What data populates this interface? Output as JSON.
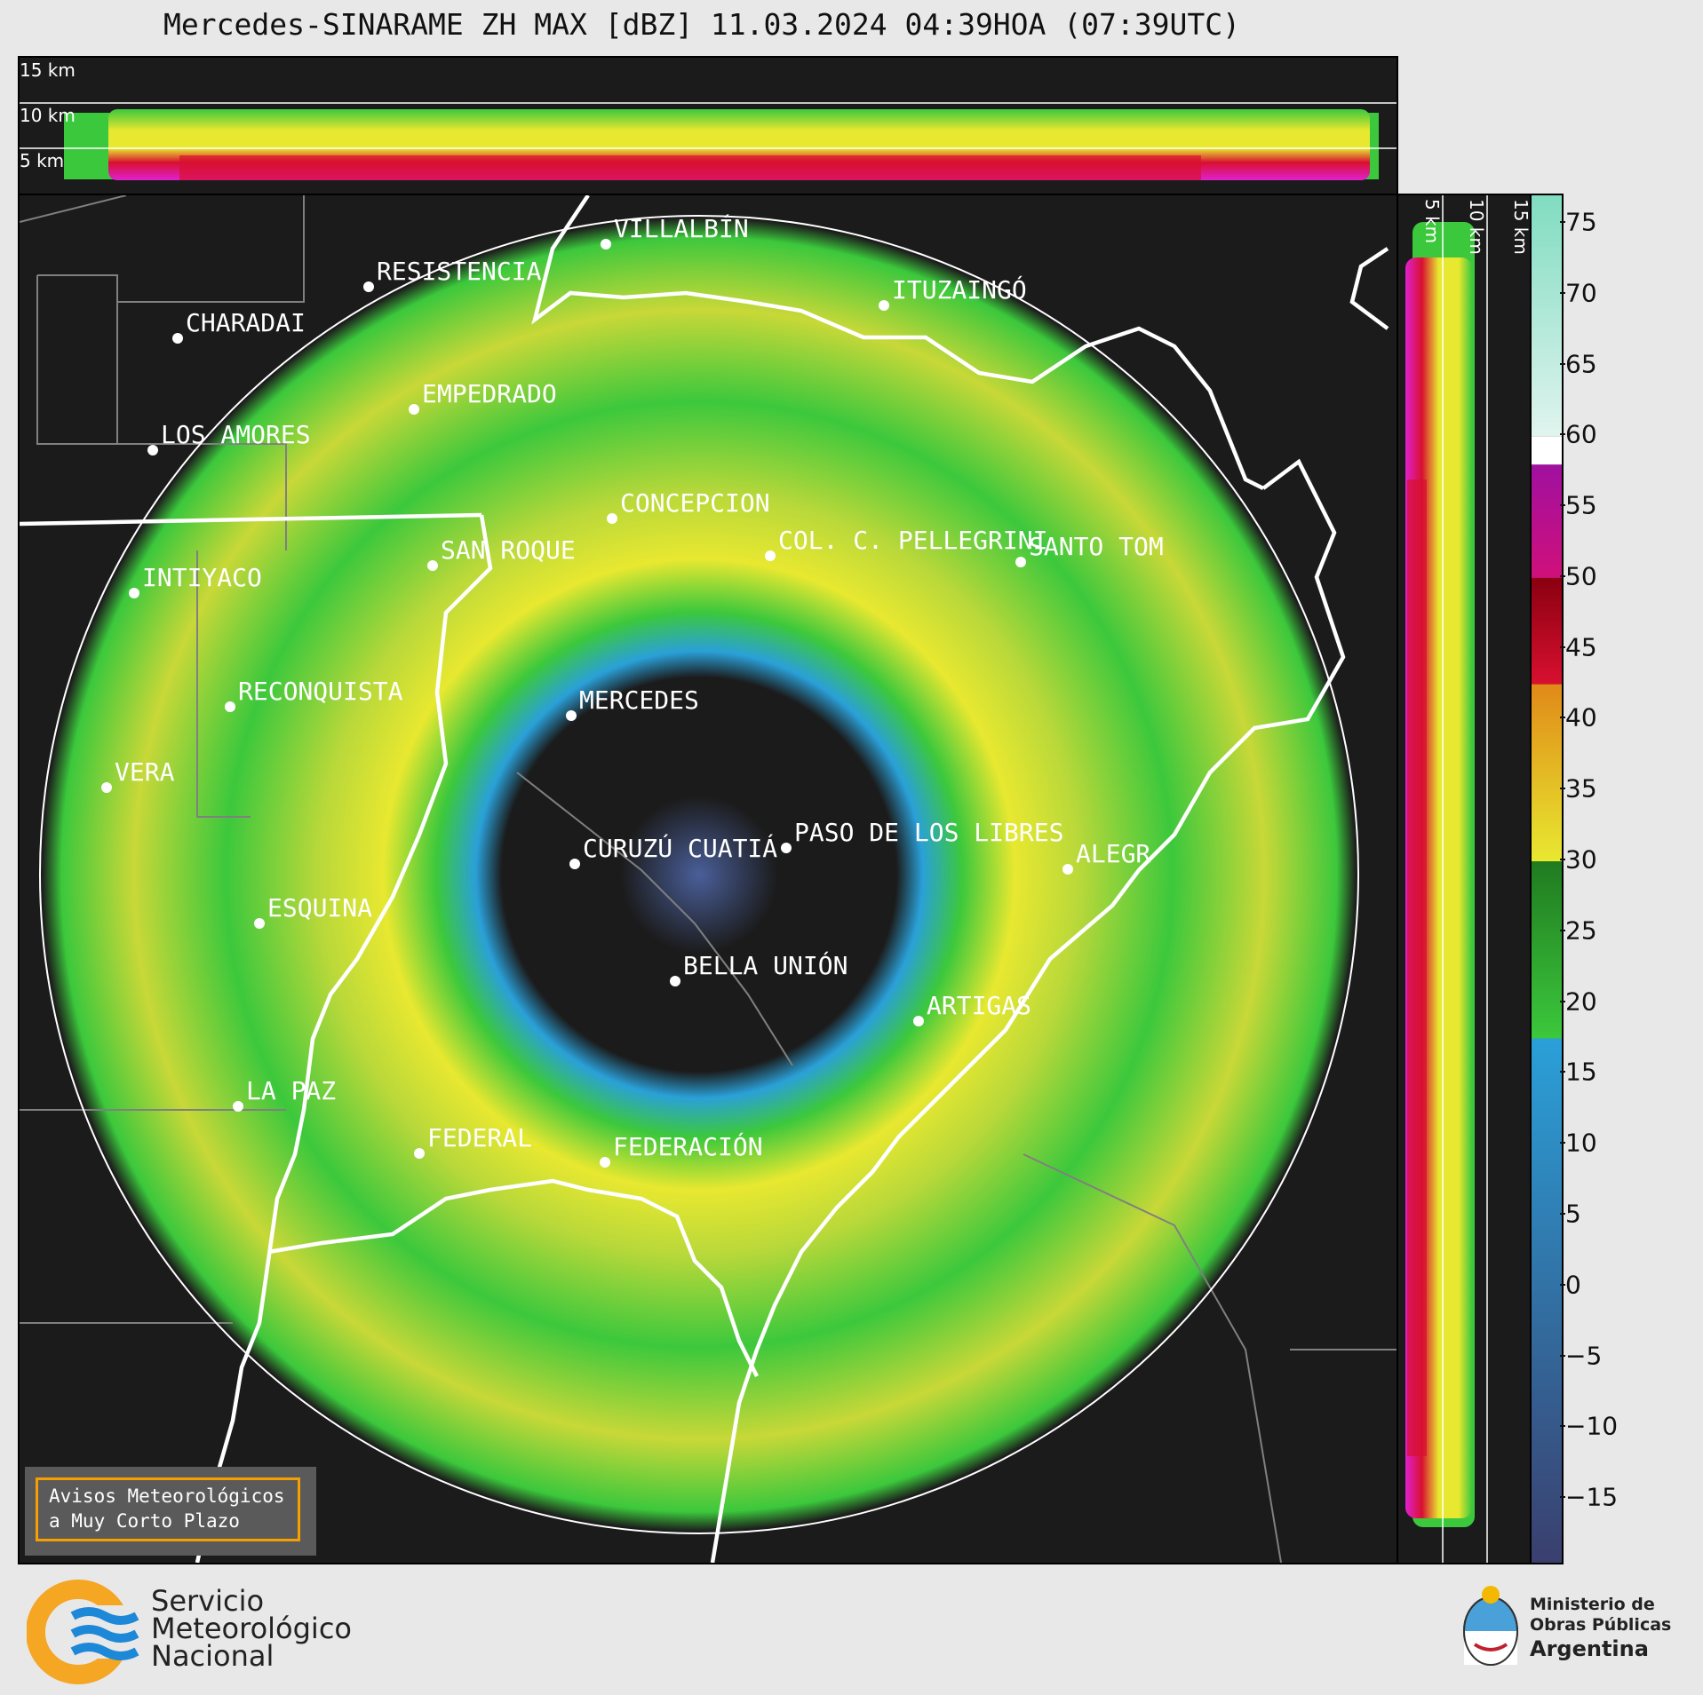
{
  "title": "Mercedes-SINARAME ZH MAX [dBZ] 11.03.2024 04:39HOA (07:39UTC)",
  "top_strip": {
    "height_labels": [
      "15 km",
      "10 km",
      "5 km"
    ]
  },
  "side_strip": {
    "height_labels": [
      "5 km",
      "10 km",
      "15 km"
    ]
  },
  "map": {
    "cities": [
      {
        "name": "VILLALBÍN"
      },
      {
        "name": "RESISTENCIA"
      },
      {
        "name": "CHARADAI"
      },
      {
        "name": "ITUZAINGÓ"
      },
      {
        "name": "EMPEDRADO"
      },
      {
        "name": "LOS AMORES"
      },
      {
        "name": "CONCEPCION"
      },
      {
        "name": "COL. C. PELLEGRINI"
      },
      {
        "name": "SANTO TOM"
      },
      {
        "name": "SAN ROQUE"
      },
      {
        "name": "INTIYACO"
      },
      {
        "name": "MERCEDES"
      },
      {
        "name": "RECONQUISTA"
      },
      {
        "name": "VERA"
      },
      {
        "name": "PASO DE LOS LIBRES"
      },
      {
        "name": "CURUZÚ CUATIÁ"
      },
      {
        "name": "ALEGR"
      },
      {
        "name": "ESQUINA"
      },
      {
        "name": "BELLA UNIÓN"
      },
      {
        "name": "ARTIGAS"
      },
      {
        "name": "LA PAZ"
      },
      {
        "name": "FEDERAL"
      },
      {
        "name": "FEDERACIÓN"
      }
    ]
  },
  "colorbar": {
    "unit": "dBZ",
    "ticks": [
      "75",
      "70",
      "65",
      "60",
      "55",
      "50",
      "45",
      "40",
      "35",
      "30",
      "25",
      "20",
      "15",
      "10",
      "5",
      "0",
      "−5",
      "−10",
      "−15"
    ],
    "tick_values": [
      75,
      70,
      65,
      60,
      55,
      50,
      45,
      40,
      35,
      30,
      25,
      20,
      15,
      10,
      5,
      0,
      -5,
      -10,
      -15
    ],
    "range": [
      -19.5,
      77
    ],
    "colors": {
      "low": "#3a3f6e",
      "blue": "#2aa0d8",
      "green": "#3cc83c",
      "yellow": "#e8e830",
      "orange": "#e08a18",
      "red": "#d81030",
      "magenta": "#e020d0",
      "white": "#ffffff",
      "teal": "#80dcc0"
    }
  },
  "warning_box": {
    "line1": "Avisos Meteorológicos",
    "line2": "a Muy Corto Plazo"
  },
  "smn": {
    "line1": "Servicio",
    "line2": "Meteorológico",
    "line3": "Nacional"
  },
  "ministry": {
    "line1": "Ministerio de",
    "line2": "Obras Públicas",
    "line3": "Argentina"
  }
}
